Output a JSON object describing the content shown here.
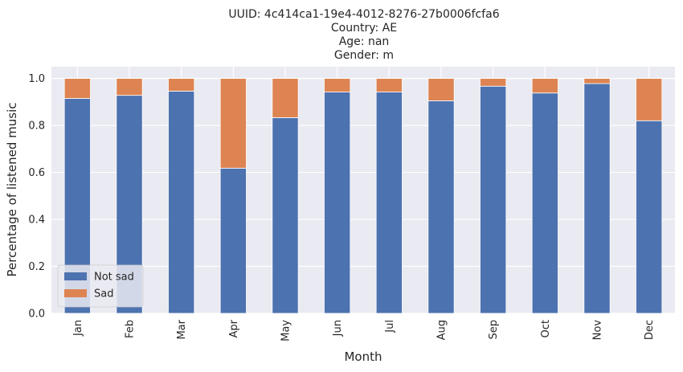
{
  "chart_data": {
    "type": "bar",
    "stacked": true,
    "title_lines": [
      "UUID: 4c414ca1-19e4-4012-8276-27b0006fcfa6",
      "Country: AE",
      "Age: nan",
      "Gender: m"
    ],
    "xlabel": "Month",
    "ylabel": "Percentage of listened music",
    "categories": [
      "Jan",
      "Feb",
      "Mar",
      "Apr",
      "May",
      "Jun",
      "Jul",
      "Aug",
      "Sep",
      "Oct",
      "Nov",
      "Dec"
    ],
    "series": [
      {
        "name": "Not sad",
        "color": "#4c72b0",
        "values": [
          0.915,
          0.928,
          0.946,
          0.618,
          0.833,
          0.942,
          0.942,
          0.905,
          0.967,
          0.938,
          0.978,
          0.82
        ]
      },
      {
        "name": "Sad",
        "color": "#dd8452",
        "values": [
          0.085,
          0.072,
          0.054,
          0.382,
          0.167,
          0.058,
          0.058,
          0.095,
          0.033,
          0.062,
          0.022,
          0.18
        ]
      }
    ],
    "ylim": [
      0,
      1.05
    ],
    "yticks": [
      "0.0",
      "0.2",
      "0.4",
      "0.6",
      "0.8",
      "1.0"
    ],
    "grid": true,
    "legend_position": "lower-left",
    "background_color": "#eaeaf2"
  }
}
